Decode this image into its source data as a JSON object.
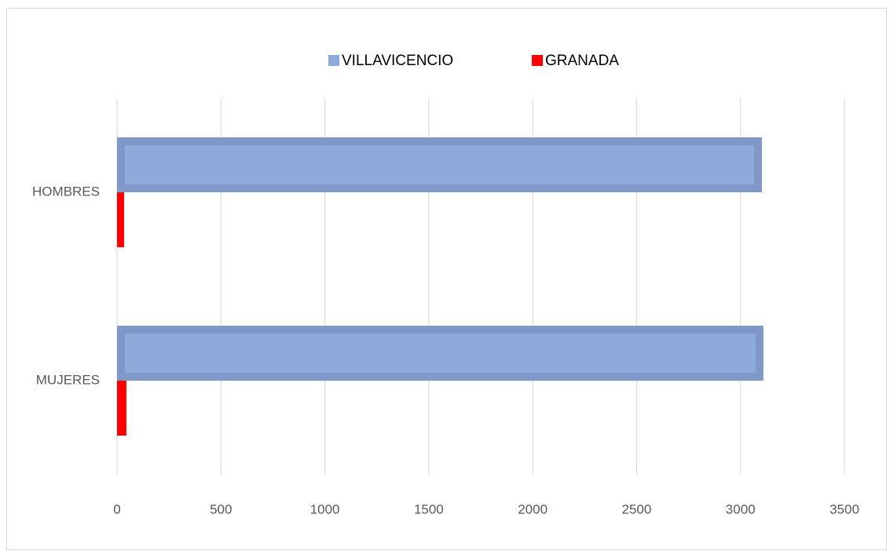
{
  "chart_data": {
    "type": "barh",
    "categories": [
      "HOMBRES",
      "MUJERES"
    ],
    "series": [
      {
        "name": "VILLAVICENCIO",
        "color": "#8eaadb",
        "edgecolor": "#7f98c8",
        "values": [
          3103,
          3110
        ]
      },
      {
        "name": "GRANADA",
        "color": "#ff0000",
        "values": [
          34,
          45
        ]
      }
    ],
    "xlim": [
      0,
      3500
    ],
    "xticks": [
      0,
      500,
      1000,
      1500,
      2000,
      2500,
      3000,
      3500
    ],
    "grid": true,
    "legend": "top"
  }
}
